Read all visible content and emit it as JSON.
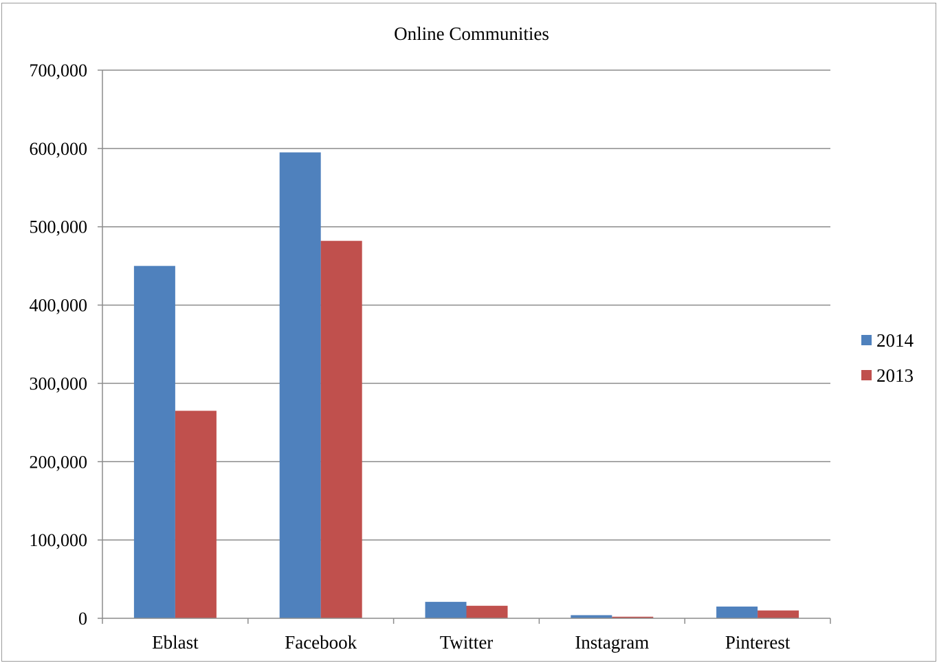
{
  "chart_data": {
    "type": "bar",
    "title": "Online Communities",
    "xlabel": "",
    "ylabel": "",
    "categories": [
      "Eblast",
      "Facebook",
      "Twitter",
      "Instagram",
      "Pinterest"
    ],
    "series": [
      {
        "name": "2014",
        "color": "#4f81bd",
        "values": [
          450000,
          595000,
          21000,
          4000,
          15000
        ]
      },
      {
        "name": "2013",
        "color": "#c0504d",
        "values": [
          265000,
          482000,
          16000,
          2000,
          10000
        ]
      }
    ],
    "ylim": [
      0,
      700000
    ],
    "yticks": [
      0,
      100000,
      200000,
      300000,
      400000,
      500000,
      600000,
      700000
    ],
    "ytick_labels": [
      "0",
      "100,000",
      "200,000",
      "300,000",
      "400,000",
      "500,000",
      "600,000",
      "700,000"
    ],
    "grid": true,
    "legend_position": "right"
  }
}
